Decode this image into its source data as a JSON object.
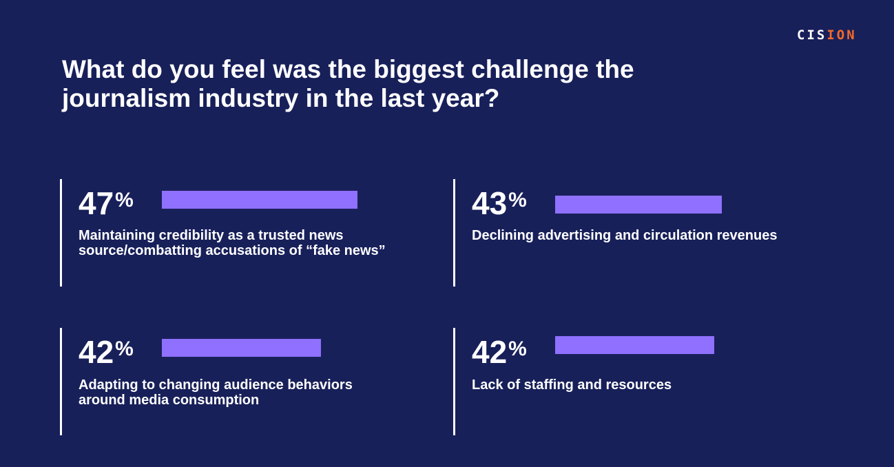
{
  "logo": {
    "text_white": "CIS",
    "text_orange": "ION",
    "brand": "CISION"
  },
  "chart_data": {
    "type": "bar",
    "title": "What do you feel was the biggest challenge the journalism industry in the last year?",
    "unit": "%",
    "items": [
      {
        "value": 47,
        "label": "Maintaining credibility as a trusted news source/combatting accusations of “fake news”"
      },
      {
        "value": 43,
        "label": "Declining advertising and circulation revenues"
      },
      {
        "value": 42,
        "label": "Adapting to changing audience behaviors around media consumption"
      },
      {
        "value": 42,
        "label": "Lack of staffing and resources"
      }
    ],
    "colors": {
      "bar": "#8f70ff",
      "background": "#18205a"
    }
  }
}
